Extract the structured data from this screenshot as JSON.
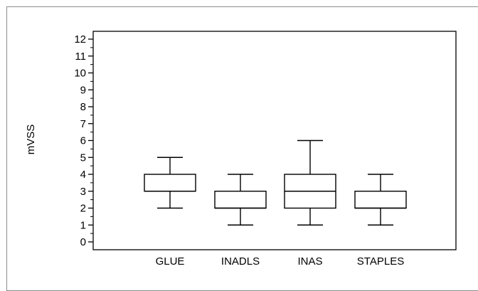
{
  "chart_data": {
    "type": "box",
    "ylabel": "mVSS",
    "ylim": [
      0,
      12
    ],
    "yticks": [
      0,
      1,
      2,
      3,
      4,
      5,
      6,
      7,
      8,
      9,
      10,
      11,
      12
    ],
    "ytick_labels": [
      "0",
      "1",
      "2",
      "3",
      "4",
      "5",
      "6",
      "7",
      "8",
      "9",
      "10",
      "11",
      "12"
    ],
    "grid": false,
    "categories": [
      "GLUE",
      "INADLS",
      "INAS",
      "STAPLES"
    ],
    "boxes": [
      {
        "name": "GLUE",
        "whisker_low": 2,
        "q1": 3,
        "median": 3,
        "q3": 4,
        "whisker_high": 5
      },
      {
        "name": "INADLS",
        "whisker_low": 1,
        "q1": 2,
        "median": 2,
        "q3": 3,
        "whisker_high": 4
      },
      {
        "name": "INAS",
        "whisker_low": 1,
        "q1": 2,
        "median": 3,
        "q3": 4,
        "whisker_high": 6
      },
      {
        "name": "STAPLES",
        "whisker_low": 1,
        "q1": 2,
        "median": 2,
        "q3": 3,
        "whisker_high": 4
      }
    ]
  }
}
